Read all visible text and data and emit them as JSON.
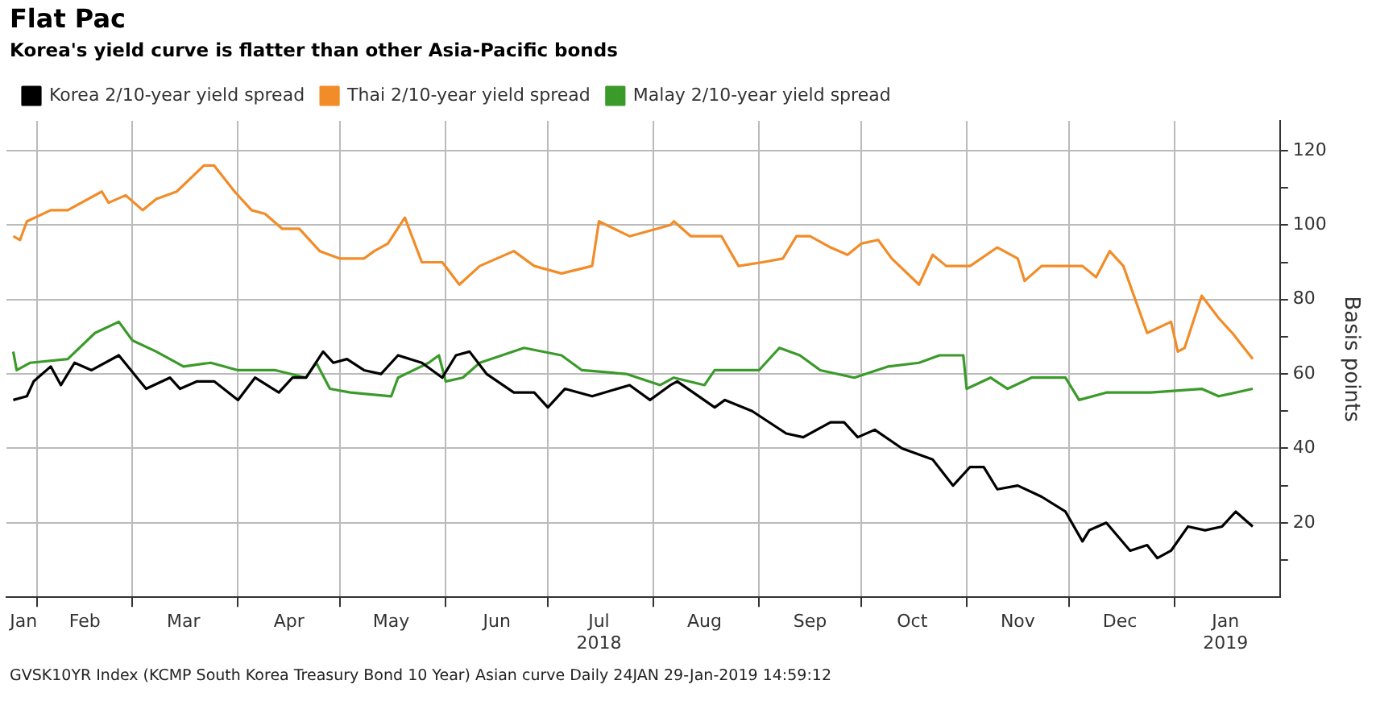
{
  "chart_data": {
    "type": "line",
    "title": "Flat Pac",
    "subtitle": "Korea's yield curve is flatter than other Asia-Pacific bonds",
    "ylabel": "Basis points",
    "annotations": [
      "GVSK10YR Index (KCMP South Korea Treasury Bond 10 Year) Asian curve  Daily 24JAN 29-Jan-2019 14:59:12"
    ],
    "legend": "top left",
    "grid": true,
    "marker": "none",
    "line_style": "solid",
    "xlim": [
      "2018-01-23",
      "2019-02-01"
    ],
    "xticks": [
      {
        "value": "2018-01-28",
        "label": "Jan"
      },
      {
        "value": "2018-02-01",
        "label": null
      },
      {
        "value": "2018-02-15",
        "label": "Feb"
      },
      {
        "value": "2018-03-01",
        "label": null
      },
      {
        "value": "2018-03-16",
        "label": "Mar"
      },
      {
        "value": "2018-04-01",
        "label": null
      },
      {
        "value": "2018-04-16",
        "label": "Apr"
      },
      {
        "value": "2018-05-01",
        "label": null
      },
      {
        "value": "2018-05-16",
        "label": "May"
      },
      {
        "value": "2018-06-01",
        "label": null
      },
      {
        "value": "2018-06-16",
        "label": "Jun"
      },
      {
        "value": "2018-07-01",
        "label": null
      },
      {
        "value": "2018-07-16",
        "label": "Jul\n2018"
      },
      {
        "value": "2018-08-01",
        "label": null
      },
      {
        "value": "2018-08-16",
        "label": "Aug"
      },
      {
        "value": "2018-09-01",
        "label": null
      },
      {
        "value": "2018-09-16",
        "label": "Sep"
      },
      {
        "value": "2018-10-01",
        "label": null
      },
      {
        "value": "2018-10-16",
        "label": "Oct"
      },
      {
        "value": "2018-11-01",
        "label": null
      },
      {
        "value": "2018-11-16",
        "label": "Nov"
      },
      {
        "value": "2018-12-01",
        "label": null
      },
      {
        "value": "2018-12-16",
        "label": "Dec"
      },
      {
        "value": "2019-01-01",
        "label": null
      },
      {
        "value": "2019-01-16",
        "label": "Jan\n2019"
      }
    ],
    "ylim": [
      0,
      128
    ],
    "yticks": [
      {
        "value": 10,
        "label": null
      },
      20,
      {
        "value": 30,
        "label": null
      },
      40,
      {
        "value": 50,
        "label": null
      },
      60,
      {
        "value": 70,
        "label": null
      },
      80,
      {
        "value": 90,
        "label": null
      },
      100,
      {
        "value": 110,
        "label": null
      },
      120
    ],
    "series": [
      {
        "name": "Korea 2/10-year yield spread",
        "color": "#000000",
        "x": [
          "2018-01-25",
          "2018-01-29",
          "2018-01-31",
          "2018-02-05",
          "2018-02-08",
          "2018-02-12",
          "2018-02-17",
          "2018-02-25",
          "2018-03-05",
          "2018-03-12",
          "2018-03-15",
          "2018-03-20",
          "2018-03-25",
          "2018-04-01",
          "2018-04-06",
          "2018-04-13",
          "2018-04-17",
          "2018-04-21",
          "2018-04-26",
          "2018-04-29",
          "2018-05-03",
          "2018-05-08",
          "2018-05-13",
          "2018-05-18",
          "2018-05-25",
          "2018-05-31",
          "2018-06-04",
          "2018-06-08",
          "2018-06-13",
          "2018-06-21",
          "2018-06-27",
          "2018-07-01",
          "2018-07-06",
          "2018-07-14",
          "2018-07-25",
          "2018-07-31",
          "2018-08-06",
          "2018-08-08",
          "2018-08-19",
          "2018-08-22",
          "2018-08-30",
          "2018-09-09",
          "2018-09-14",
          "2018-09-22",
          "2018-09-26",
          "2018-09-30",
          "2018-10-05",
          "2018-10-13",
          "2018-10-22",
          "2018-10-28",
          "2018-11-02",
          "2018-11-06",
          "2018-11-10",
          "2018-11-16",
          "2018-11-23",
          "2018-11-30",
          "2018-12-05",
          "2018-12-07",
          "2018-12-12",
          "2018-12-19",
          "2018-12-24",
          "2018-12-27",
          "2018-12-31",
          "2019-01-05",
          "2019-01-10",
          "2019-01-15",
          "2019-01-19",
          "2019-01-24"
        ],
        "values": [
          53,
          54,
          58,
          62,
          57,
          63,
          61,
          65,
          56,
          59,
          56,
          58,
          58,
          53,
          59,
          55,
          59,
          59,
          66,
          63,
          64,
          61,
          60,
          65,
          63,
          59,
          65,
          66,
          60,
          55,
          55,
          51,
          56,
          54,
          57,
          53,
          57,
          58,
          51,
          53,
          50,
          44,
          43,
          47,
          47,
          43,
          45,
          40,
          37,
          30,
          35,
          35,
          29,
          30,
          27,
          23,
          15,
          18,
          20,
          12.5,
          14,
          10.5,
          12.5,
          19,
          18,
          19,
          23,
          19
        ]
      },
      {
        "name": "Thai 2/10-year yield spread",
        "color": "#f28c28",
        "x": [
          "2018-01-25",
          "2018-01-27",
          "2018-01-29",
          "2018-02-05",
          "2018-02-10",
          "2018-02-20",
          "2018-02-22",
          "2018-02-27",
          "2018-03-04",
          "2018-03-08",
          "2018-03-14",
          "2018-03-22",
          "2018-03-25",
          "2018-03-31",
          "2018-04-05",
          "2018-04-09",
          "2018-04-14",
          "2018-04-19",
          "2018-04-25",
          "2018-05-01",
          "2018-05-08",
          "2018-05-11",
          "2018-05-15",
          "2018-05-20",
          "2018-05-25",
          "2018-05-31",
          "2018-06-05",
          "2018-06-11",
          "2018-06-21",
          "2018-06-27",
          "2018-07-05",
          "2018-07-14",
          "2018-07-16",
          "2018-07-25",
          "2018-08-06",
          "2018-08-07",
          "2018-08-12",
          "2018-08-21",
          "2018-08-26",
          "2018-09-02",
          "2018-09-08",
          "2018-09-12",
          "2018-09-16",
          "2018-09-22",
          "2018-09-27",
          "2018-10-01",
          "2018-10-06",
          "2018-10-10",
          "2018-10-18",
          "2018-10-22",
          "2018-10-26",
          "2018-11-02",
          "2018-11-10",
          "2018-11-16",
          "2018-11-18",
          "2018-11-23",
          "2018-11-30",
          "2018-12-05",
          "2018-12-09",
          "2018-12-13",
          "2018-12-17",
          "2018-12-24",
          "2018-12-31",
          "2019-01-02",
          "2019-01-04",
          "2019-01-09",
          "2019-01-14",
          "2019-01-18",
          "2019-01-24"
        ],
        "values": [
          97,
          96,
          101,
          104,
          104,
          109,
          106,
          108,
          104,
          107,
          109,
          116,
          116,
          109,
          104,
          103,
          99,
          99,
          93,
          91,
          91,
          93,
          95,
          102,
          90,
          90,
          84,
          89,
          93,
          89,
          87,
          89,
          101,
          97,
          100,
          101,
          97,
          97,
          89,
          90,
          91,
          97,
          97,
          94,
          92,
          95,
          96,
          91,
          84,
          92,
          89,
          89,
          94,
          91,
          85,
          89,
          89,
          89,
          86,
          93,
          89,
          71,
          74,
          66,
          67,
          81,
          75,
          71,
          64
        ]
      },
      {
        "name": "Malay 2/10-year yield spread",
        "color": "#3a9a2a",
        "x": [
          "2018-01-25",
          "2018-01-26",
          "2018-01-30",
          "2018-02-10",
          "2018-02-18",
          "2018-02-25",
          "2018-03-01",
          "2018-03-08",
          "2018-03-16",
          "2018-03-24",
          "2018-04-01",
          "2018-04-12",
          "2018-04-21",
          "2018-04-24",
          "2018-04-28",
          "2018-05-04",
          "2018-05-16",
          "2018-05-18",
          "2018-05-27",
          "2018-05-30",
          "2018-06-01",
          "2018-06-06",
          "2018-06-11",
          "2018-06-24",
          "2018-07-05",
          "2018-07-11",
          "2018-07-24",
          "2018-08-03",
          "2018-08-07",
          "2018-08-16",
          "2018-08-19",
          "2018-09-01",
          "2018-09-07",
          "2018-09-13",
          "2018-09-19",
          "2018-09-29",
          "2018-10-09",
          "2018-10-18",
          "2018-10-24",
          "2018-10-31",
          "2018-11-01",
          "2018-11-08",
          "2018-11-13",
          "2018-11-20",
          "2018-11-30",
          "2018-12-04",
          "2018-12-12",
          "2018-12-25",
          "2019-01-09",
          "2019-01-14",
          "2019-01-24"
        ],
        "values": [
          66,
          61,
          63,
          64,
          71,
          74,
          69,
          66,
          62,
          63,
          61,
          61,
          59,
          63,
          56,
          55,
          54,
          59,
          63,
          65,
          58,
          59,
          63,
          67,
          65,
          61,
          60,
          57,
          59,
          57,
          61,
          61,
          67,
          65,
          61,
          59,
          62,
          63,
          65,
          65,
          56,
          59,
          56,
          59,
          59,
          53,
          55,
          55,
          56,
          54,
          56
        ]
      }
    ]
  }
}
